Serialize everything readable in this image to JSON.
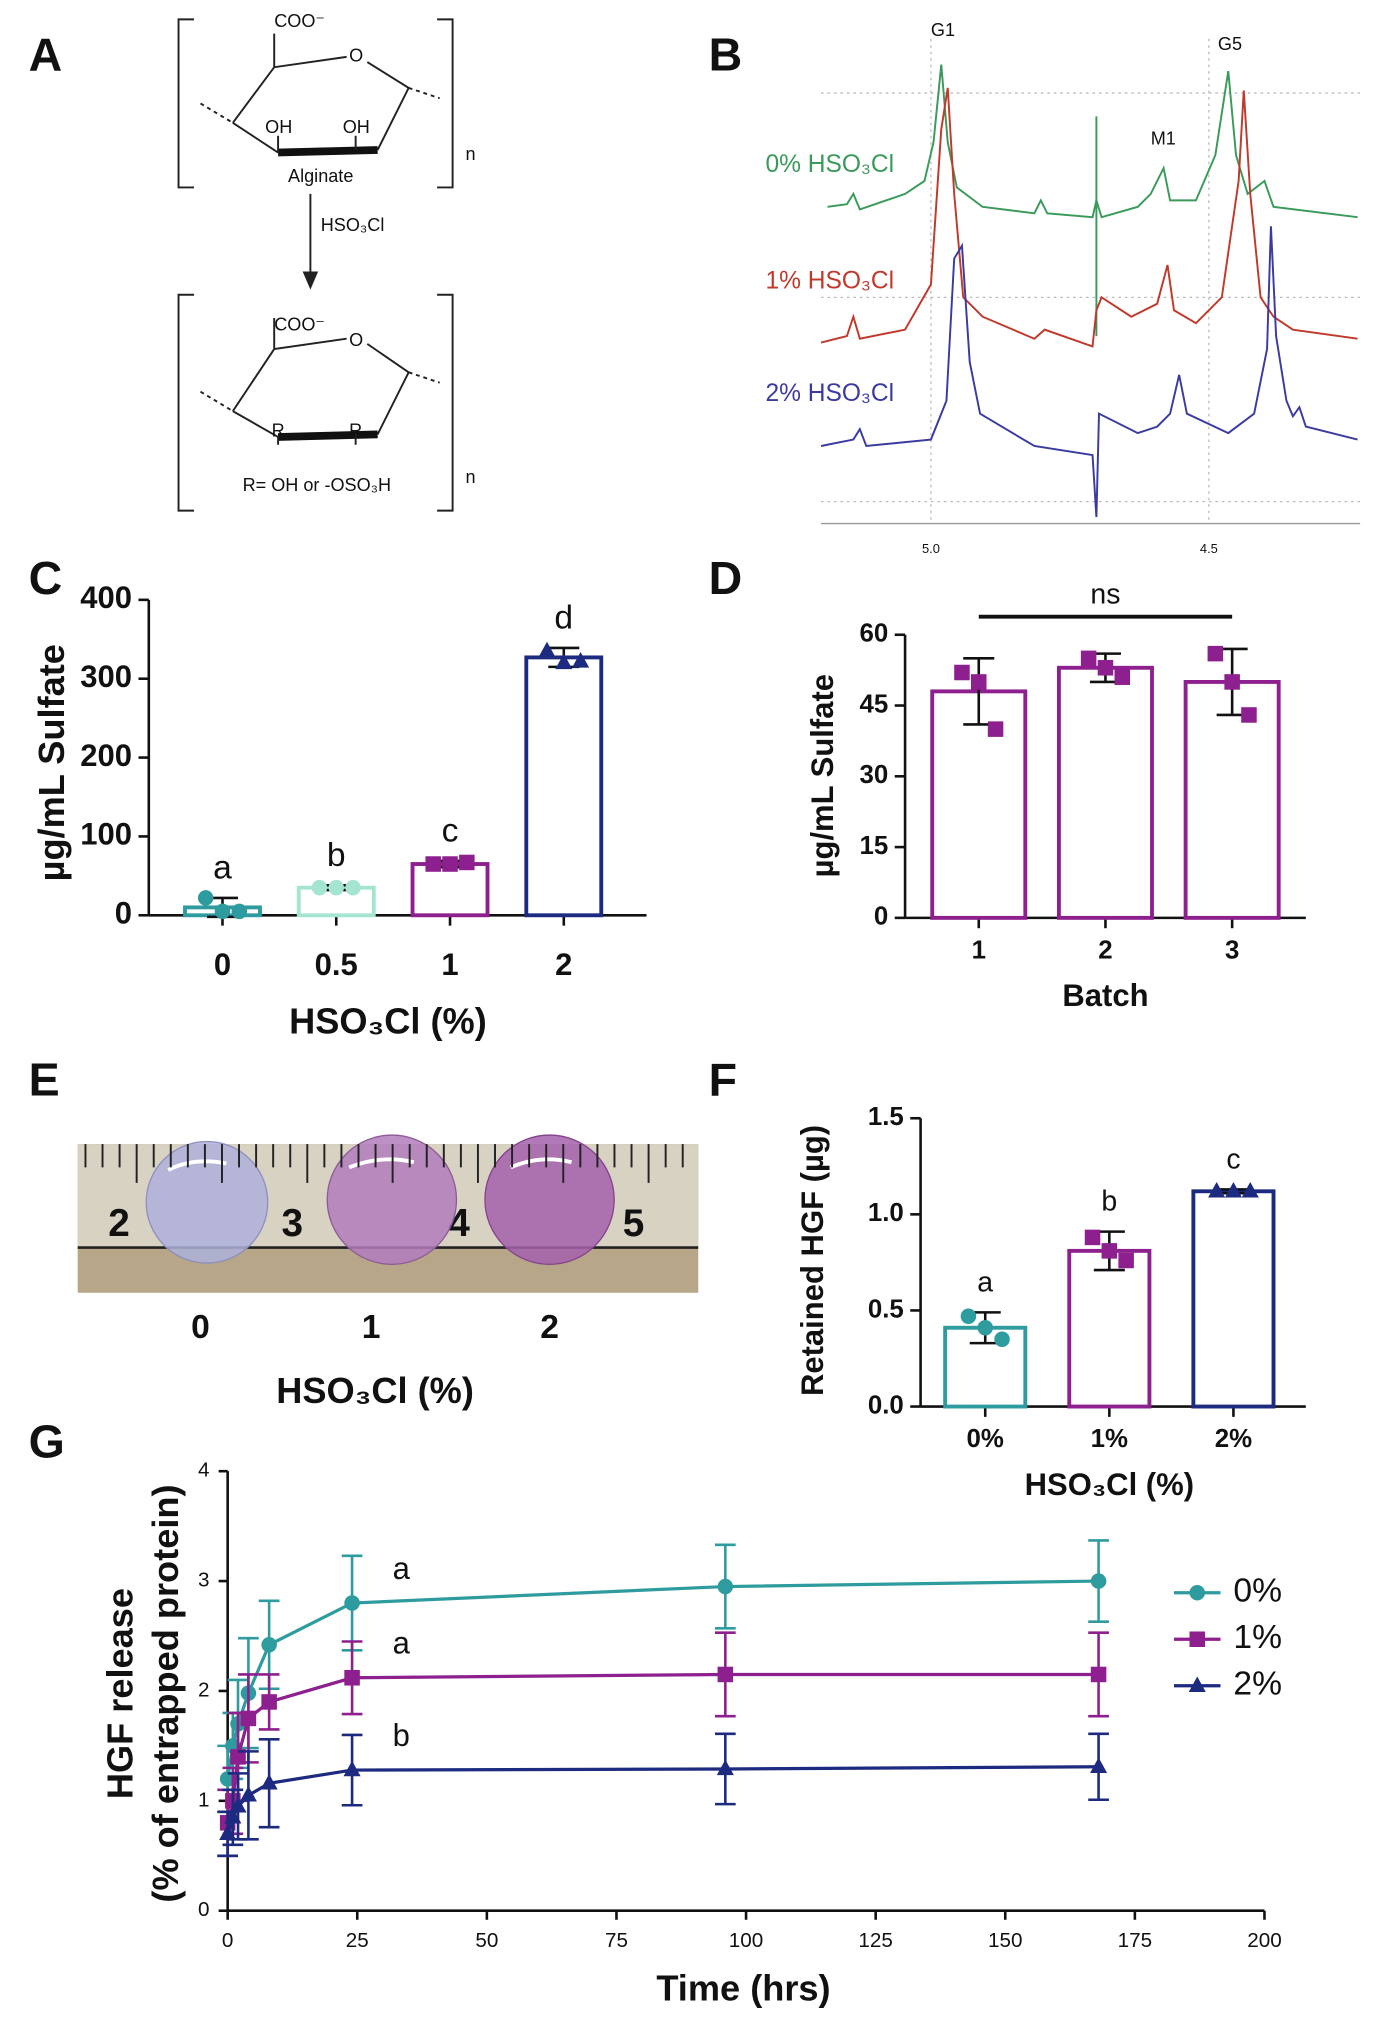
{
  "panel_letters": [
    "A",
    "B",
    "C",
    "D",
    "E",
    "F",
    "G"
  ],
  "structure": {
    "top": {
      "group": "COO⁻",
      "ring_o": "O",
      "oh1": "OH",
      "oh2": "OH",
      "name": "Alginate",
      "n": "n"
    },
    "reagent": "HSO₃Cl",
    "bottom": {
      "group": "COO⁻",
      "ring_o": "O",
      "r1": "R",
      "r2": "R",
      "name": "R= OH or -OSO₃H",
      "n": "n"
    }
  },
  "spectrum": {
    "peaks": [
      "G1",
      "M1",
      "G5"
    ],
    "traces": [
      "0% HSO₃Cl",
      "1% HSO₃Cl",
      "2% HSO₃Cl"
    ],
    "ticks": [
      "5.0",
      "4.5"
    ]
  },
  "photo": {
    "ruler": [
      "2",
      "3",
      "4",
      "5"
    ],
    "labels": [
      "0",
      "1",
      "2"
    ],
    "xlabel": "HSO₃Cl (%)"
  },
  "chart_data": [
    {
      "type": "bar",
      "ylabel": "µg/mL Sulfate",
      "xlabel": "HSO₃Cl (%)",
      "categories": [
        "0",
        "0.5",
        "1",
        "2"
      ],
      "values": [
        10,
        35,
        65,
        327
      ],
      "errors": [
        12,
        3,
        4,
        12
      ],
      "points": [
        [
          22,
          5,
          5
        ],
        [
          35,
          35,
          35
        ],
        [
          65,
          65,
          67
        ],
        [
          335,
          320,
          322
        ]
      ],
      "colors": [
        "#2e9c9e",
        "#a4e4d2",
        "#8e1f8e",
        "#1c2a80"
      ],
      "markers": [
        "circle",
        "circle",
        "square",
        "triangle"
      ],
      "annotations": [
        "a",
        "b",
        "c",
        "d"
      ],
      "ylim": [
        0,
        400
      ],
      "yticks": [
        0,
        100,
        200,
        300,
        400
      ]
    },
    {
      "type": "bar",
      "ylabel": "µg/mL Sulfate",
      "xlabel": "Batch",
      "categories": [
        "1",
        "2",
        "3"
      ],
      "values": [
        48,
        53,
        50
      ],
      "errors": [
        7,
        3,
        7
      ],
      "points": [
        [
          52,
          50,
          40
        ],
        [
          55,
          53,
          51
        ],
        [
          56,
          50,
          43
        ]
      ],
      "color": "#8e1f8e",
      "marker": "square",
      "significance": "ns",
      "ylim": [
        0,
        60
      ],
      "yticks": [
        0,
        15,
        30,
        45,
        60
      ]
    },
    {
      "type": "bar",
      "ylabel": "Retained HGF (µg)",
      "xlabel": "HSO₃Cl (%)",
      "categories": [
        "0%",
        "1%",
        "2%"
      ],
      "values": [
        0.41,
        0.81,
        1.12
      ],
      "errors": [
        0.08,
        0.1,
        0.01
      ],
      "points": [
        [
          0.47,
          0.41,
          0.35
        ],
        [
          0.88,
          0.81,
          0.76
        ],
        [
          1.12,
          1.12,
          1.12
        ]
      ],
      "colors": [
        "#2e9c9e",
        "#8e1f8e",
        "#1c2a80"
      ],
      "markers": [
        "circle",
        "square",
        "triangle"
      ],
      "annotations": [
        "a",
        "b",
        "c"
      ],
      "ylim": [
        0,
        1.5
      ],
      "yticks": [
        {
          "value": 0,
          "label": "0.0"
        },
        0.5,
        {
          "value": 1,
          "label": "1.0"
        },
        1.5
      ]
    },
    {
      "type": "line",
      "ylabel": [
        "HGF release",
        "(% of entrapped protein)"
      ],
      "xlabel": "Time (hrs)",
      "x": [
        0,
        1,
        2,
        4,
        8,
        24,
        96,
        168
      ],
      "series": [
        {
          "name": "0%",
          "color": "#2e9c9e",
          "marker": "circle",
          "annotation": "a",
          "values": [
            1.2,
            1.5,
            1.7,
            1.98,
            2.42,
            2.8,
            2.95,
            3.0
          ],
          "errors": [
            0.3,
            0.3,
            0.4,
            0.5,
            0.4,
            0.43,
            0.38,
            0.37
          ]
        },
        {
          "name": "1%",
          "color": "#8e1f8e",
          "marker": "square",
          "annotation": "a",
          "values": [
            0.8,
            1.0,
            1.4,
            1.75,
            1.9,
            2.12,
            2.15,
            2.15
          ],
          "errors": [
            0.3,
            0.3,
            0.4,
            0.4,
            0.25,
            0.33,
            0.38,
            0.38
          ]
        },
        {
          "name": "2%",
          "color": "#1c2a80",
          "marker": "triangle",
          "annotation": "b",
          "values": [
            0.7,
            0.85,
            0.95,
            1.05,
            1.16,
            1.28,
            1.29,
            1.31
          ],
          "errors": [
            0.2,
            0.25,
            0.3,
            0.4,
            0.4,
            0.32,
            0.32,
            0.3
          ]
        }
      ],
      "legend": "right",
      "xlim": [
        0,
        200
      ],
      "xticks": [
        0,
        25,
        50,
        75,
        100,
        125,
        150,
        175,
        200
      ],
      "ylim": [
        0,
        4
      ],
      "yticks": [
        0,
        1,
        2,
        3,
        4
      ]
    }
  ]
}
